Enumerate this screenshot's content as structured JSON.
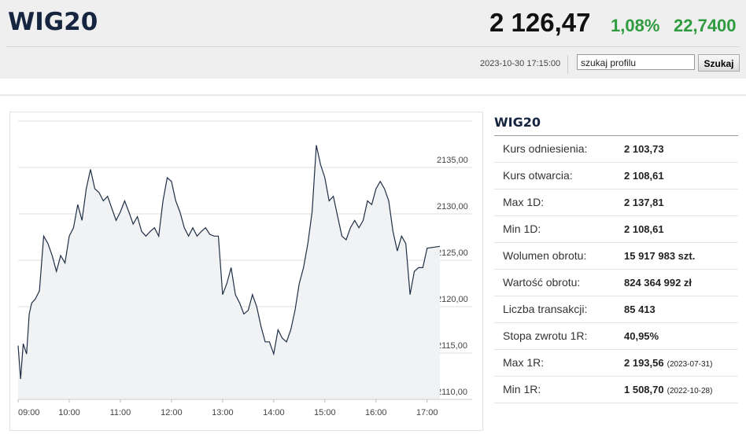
{
  "header": {
    "title": "WIG20",
    "price": "2 126,47",
    "change_pct": "1,08%",
    "change_abs": "22,7400",
    "timestamp": "2023-10-30 17:15:00",
    "search_placeholder": "szukaj profilu",
    "search_button": "Szukaj"
  },
  "chart_data": {
    "type": "line",
    "color": "#1f2f45",
    "fill": "#f1f2f4",
    "x": [
      "09:00",
      "09:03",
      "09:06",
      "09:10",
      "09:13",
      "09:16",
      "09:20",
      "09:25",
      "09:30",
      "09:35",
      "09:40",
      "09:45",
      "09:50",
      "09:55",
      "10:00",
      "10:05",
      "10:10",
      "10:15",
      "10:20",
      "10:25",
      "10:30",
      "10:35",
      "10:40",
      "10:45",
      "10:50",
      "10:55",
      "11:00",
      "11:05",
      "11:10",
      "11:15",
      "11:20",
      "11:25",
      "11:30",
      "11:35",
      "11:40",
      "11:45",
      "11:50",
      "11:55",
      "12:00",
      "12:05",
      "12:10",
      "12:15",
      "12:20",
      "12:25",
      "12:30",
      "12:35",
      "12:40",
      "12:45",
      "12:50",
      "12:55",
      "13:00",
      "13:05",
      "13:10",
      "13:15",
      "13:20",
      "13:25",
      "13:30",
      "13:35",
      "13:40",
      "13:45",
      "13:50",
      "13:55",
      "14:00",
      "14:05",
      "14:10",
      "14:15",
      "14:20",
      "14:25",
      "14:30",
      "14:35",
      "14:40",
      "14:45",
      "14:50",
      "14:55",
      "15:00",
      "15:05",
      "15:10",
      "15:15",
      "15:20",
      "15:25",
      "15:30",
      "15:35",
      "15:40",
      "15:45",
      "15:50",
      "15:55",
      "16:00",
      "16:05",
      "16:10",
      "16:15",
      "16:20",
      "16:25",
      "16:30",
      "16:35",
      "16:40",
      "16:45",
      "16:50",
      "16:55",
      "17:00",
      "17:15"
    ],
    "values": [
      2115.8,
      2112.2,
      2116,
      2114.9,
      2119.2,
      2120.4,
      2120.8,
      2121.7,
      2127.6,
      2126.8,
      2125.5,
      2123.8,
      2125.5,
      2124.7,
      2127.6,
      2128.5,
      2131,
      2129.3,
      2132.7,
      2134.8,
      2132.7,
      2132.3,
      2131.4,
      2131.9,
      2130.6,
      2129.3,
      2130.2,
      2131.4,
      2130.2,
      2128.9,
      2129.7,
      2128.1,
      2127.6,
      2128.1,
      2128.5,
      2127.6,
      2131.4,
      2133.9,
      2133.5,
      2131.4,
      2130.2,
      2128.5,
      2127.6,
      2128.5,
      2127.6,
      2128.1,
      2128.5,
      2127.8,
      2127.6,
      2127.6,
      2121.3,
      2122.5,
      2124.2,
      2121.3,
      2120.4,
      2119.2,
      2119.6,
      2121.3,
      2120,
      2117.9,
      2116.2,
      2116.2,
      2114.9,
      2117.5,
      2116.6,
      2116.2,
      2117.5,
      2119.6,
      2122.5,
      2124.2,
      2126.8,
      2130.2,
      2137.4,
      2135.3,
      2133.9,
      2131.4,
      2131.9,
      2129.7,
      2127.6,
      2127.2,
      2128.5,
      2129.3,
      2128.5,
      2129.3,
      2131.4,
      2131,
      2132.7,
      2133.5,
      2132.7,
      2131.4,
      2128.1,
      2126,
      2127.6,
      2126.8,
      2121.3,
      2123.8,
      2124.2,
      2124.2,
      2126.3,
      2126.5
    ],
    "xlim": [
      "09:00",
      "17:15"
    ],
    "xticks": [
      "09:00",
      "10:00",
      "11:00",
      "12:00",
      "13:00",
      "14:00",
      "15:00",
      "16:00",
      "17:00"
    ],
    "ylim": [
      2110,
      2140
    ],
    "yticks": [
      {
        "value": 2110,
        "label": "2110,00"
      },
      {
        "value": 2115,
        "label": "2115,00"
      },
      {
        "value": 2120,
        "label": "2120,00"
      },
      {
        "value": 2125,
        "label": "2125,00"
      },
      {
        "value": 2130,
        "label": "2130,00"
      },
      {
        "value": 2135,
        "label": "2135,00"
      }
    ],
    "grid": true
  },
  "table": {
    "title": "WIG20",
    "rows": [
      {
        "label": "Kurs odniesienia:",
        "value": "2 103,73"
      },
      {
        "label": "Kurs otwarcia:",
        "value": "2 108,61"
      },
      {
        "label": "Max 1D:",
        "value": "2 137,81"
      },
      {
        "label": "Min 1D:",
        "value": "2 108,61"
      },
      {
        "label": "Wolumen obrotu:",
        "value": "15 917 983 szt."
      },
      {
        "label": "Wartość obrotu:",
        "value": "824 364 992 zł"
      },
      {
        "label": "Liczba transakcji:",
        "value": "85 413"
      },
      {
        "label": "Stopa zwrotu 1R:",
        "value": "40,95%"
      },
      {
        "label": "Max 1R:",
        "value": "2 193,56",
        "note": "(2023-07-31)"
      },
      {
        "label": "Min 1R:",
        "value": "1 508,70",
        "note": "(2022-10-28)"
      }
    ]
  }
}
